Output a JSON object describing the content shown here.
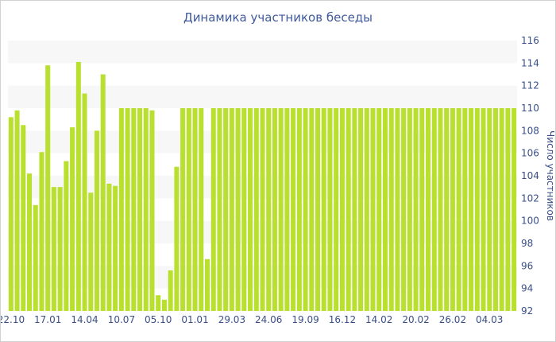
{
  "chart_data": {
    "type": "bar",
    "title": "Динамика участников беседы",
    "xlabel": "",
    "ylabel": "Число участников",
    "ylim": [
      92,
      116
    ],
    "yticks": [
      92,
      94,
      96,
      98,
      100,
      102,
      104,
      106,
      108,
      110,
      112,
      114,
      116
    ],
    "x_tick_labels": [
      {
        "index": 0,
        "label": "22.10"
      },
      {
        "index": 6,
        "label": "17.01"
      },
      {
        "index": 12,
        "label": "14.04"
      },
      {
        "index": 18,
        "label": "10.07"
      },
      {
        "index": 24,
        "label": "05.10"
      },
      {
        "index": 30,
        "label": "01.01"
      },
      {
        "index": 36,
        "label": "29.03"
      },
      {
        "index": 42,
        "label": "24.06"
      },
      {
        "index": 48,
        "label": "19.09"
      },
      {
        "index": 54,
        "label": "16.12"
      },
      {
        "index": 60,
        "label": "14.02"
      },
      {
        "index": 66,
        "label": "20.02"
      },
      {
        "index": 72,
        "label": "26.02"
      },
      {
        "index": 78,
        "label": "04.03"
      }
    ],
    "values": [
      109.2,
      109.8,
      108.5,
      104.2,
      101.4,
      106.1,
      113.8,
      103.0,
      103.0,
      105.3,
      108.3,
      114.1,
      111.3,
      102.5,
      108.0,
      113.0,
      103.3,
      103.1,
      110.0,
      110.0,
      110.0,
      110.0,
      110.0,
      109.8,
      93.4,
      93.0,
      95.6,
      104.8,
      110.0,
      110.0,
      110.0,
      110.0,
      96.6,
      110.0,
      110.0,
      110.0,
      110.0,
      110.0,
      110.0,
      110.0,
      110.0,
      110.0,
      110.0,
      110.0,
      110.0,
      110.0,
      110.0,
      110.0,
      110.0,
      110.0,
      110.0,
      110.0,
      110.0,
      110.0,
      110.0,
      110.0,
      110.0,
      110.0,
      110.0,
      110.0,
      110.0,
      110.0,
      110.0,
      110.0,
      110.0,
      110.0,
      110.0,
      110.0,
      110.0,
      110.0,
      110.0,
      110.0,
      110.0,
      110.0,
      110.0,
      110.0,
      110.0,
      110.0,
      110.0,
      110.0,
      110.0,
      110.0,
      110.0
    ],
    "bar_color": "#b9e02e",
    "band_color": "#f7f7f7",
    "text_color": "#3a4f8a",
    "grid": "horizontal bands",
    "legend": "none",
    "y_axis_side": "right"
  }
}
